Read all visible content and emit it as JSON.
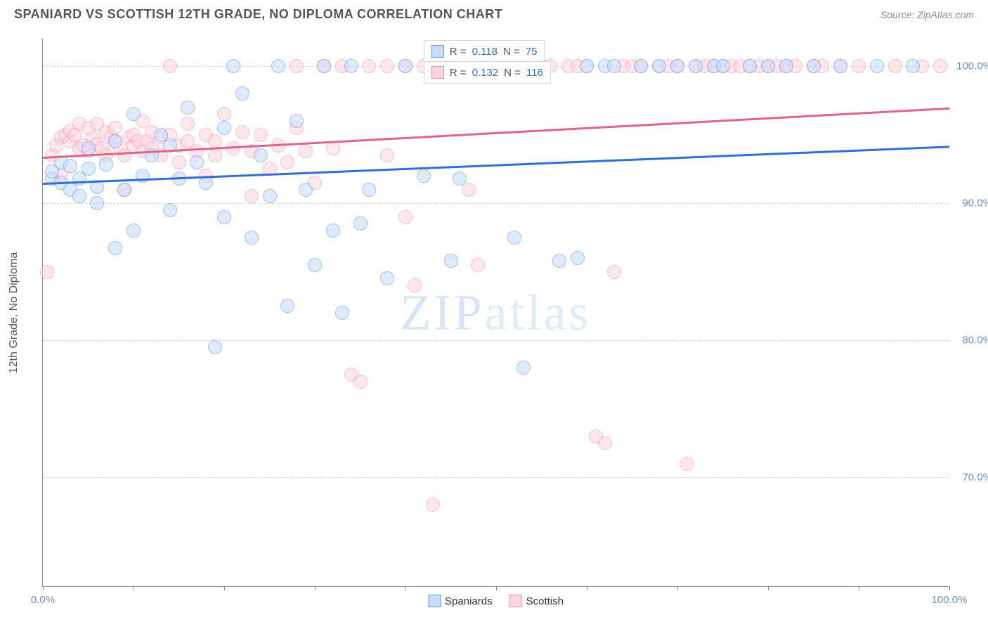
{
  "title": "SPANIARD VS SCOTTISH 12TH GRADE, NO DIPLOMA CORRELATION CHART",
  "source": "Source: ZipAtlas.com",
  "yaxis_label": "12th Grade, No Diploma",
  "watermark": "ZIPatlas",
  "chart": {
    "type": "scatter",
    "xlim": [
      0,
      100
    ],
    "ylim": [
      62,
      102
    ],
    "x_ticks": [
      0,
      10,
      20,
      30,
      40,
      50,
      60,
      70,
      80,
      90,
      100
    ],
    "x_labels_shown": {
      "0": "0.0%",
      "100": "100.0%"
    },
    "y_grid": [
      70,
      80,
      90,
      100
    ],
    "y_labels": {
      "70": "70.0%",
      "80": "80.0%",
      "90": "90.0%",
      "100": "100.0%"
    },
    "background_color": "#ffffff",
    "grid_color": "#d5d5d5",
    "axis_color": "#888888",
    "label_color": "#6a8fc9",
    "point_radius": 10,
    "point_stroke_width": 1,
    "series": [
      {
        "name": "Spaniards",
        "fill": "#c9deff",
        "stroke": "#6a98d8",
        "fill_opacity": 0.6,
        "r_value": "0.118",
        "n_value": "75",
        "trend": {
          "x0": 0,
          "y0": 91.5,
          "x1": 100,
          "y1": 94.2,
          "color": "#2e6fd6",
          "width": 2.5
        },
        "points": [
          [
            1,
            91.8
          ],
          [
            1,
            92.3
          ],
          [
            2,
            91.5
          ],
          [
            2,
            93.0
          ],
          [
            3,
            91.0
          ],
          [
            3,
            92.7
          ],
          [
            4,
            90.5
          ],
          [
            4,
            91.8
          ],
          [
            5,
            94.0
          ],
          [
            5,
            92.5
          ],
          [
            6,
            91.2
          ],
          [
            6,
            90.0
          ],
          [
            7,
            92.8
          ],
          [
            8,
            86.7
          ],
          [
            8,
            94.5
          ],
          [
            9,
            91.0
          ],
          [
            10,
            96.5
          ],
          [
            10,
            88.0
          ],
          [
            11,
            92.0
          ],
          [
            12,
            93.5
          ],
          [
            13,
            95.0
          ],
          [
            14,
            89.5
          ],
          [
            14,
            94.2
          ],
          [
            15,
            91.8
          ],
          [
            16,
            97.0
          ],
          [
            17,
            93.0
          ],
          [
            18,
            91.5
          ],
          [
            19,
            79.5
          ],
          [
            20,
            95.5
          ],
          [
            20,
            89.0
          ],
          [
            21,
            100.0
          ],
          [
            22,
            98.0
          ],
          [
            23,
            87.5
          ],
          [
            24,
            93.5
          ],
          [
            25,
            90.5
          ],
          [
            26,
            100.0
          ],
          [
            27,
            82.5
          ],
          [
            28,
            96.0
          ],
          [
            29,
            91.0
          ],
          [
            30,
            85.5
          ],
          [
            31,
            100.0
          ],
          [
            32,
            88.0
          ],
          [
            33,
            82.0
          ],
          [
            34,
            100.0
          ],
          [
            35,
            88.5
          ],
          [
            36,
            91.0
          ],
          [
            38,
            84.5
          ],
          [
            40,
            100.0
          ],
          [
            42,
            92.0
          ],
          [
            43,
            100.0
          ],
          [
            45,
            85.8
          ],
          [
            46,
            91.8
          ],
          [
            48,
            100.0
          ],
          [
            50,
            100.0
          ],
          [
            52,
            87.5
          ],
          [
            53,
            78.0
          ],
          [
            55,
            100.0
          ],
          [
            57,
            85.8
          ],
          [
            59,
            86.0
          ],
          [
            60,
            100.0
          ],
          [
            62,
            100.0
          ],
          [
            63,
            100.0
          ],
          [
            66,
            100.0
          ],
          [
            68,
            100.0
          ],
          [
            70,
            100.0
          ],
          [
            72,
            100.0
          ],
          [
            74,
            100.0
          ],
          [
            75,
            100.0
          ],
          [
            78,
            100.0
          ],
          [
            80,
            100.0
          ],
          [
            82,
            100.0
          ],
          [
            85,
            100.0
          ],
          [
            88,
            100.0
          ],
          [
            92,
            100.0
          ],
          [
            96,
            100.0
          ]
        ]
      },
      {
        "name": "Scottish",
        "fill": "#ffd4df",
        "stroke": "#e892a8",
        "fill_opacity": 0.55,
        "r_value": "0.132",
        "n_value": "116",
        "trend": {
          "x0": 0,
          "y0": 93.4,
          "x1": 100,
          "y1": 97.0,
          "color": "#e06487",
          "width": 2.5
        },
        "points": [
          [
            0.5,
            85.0
          ],
          [
            1,
            93.5
          ],
          [
            1.5,
            94.2
          ],
          [
            2,
            94.8
          ],
          [
            2,
            92.0
          ],
          [
            2.5,
            95.0
          ],
          [
            3,
            94.5
          ],
          [
            3,
            95.3
          ],
          [
            3.5,
            95.0
          ],
          [
            4,
            94.0
          ],
          [
            4,
            95.8
          ],
          [
            4.5,
            94.2
          ],
          [
            5,
            95.5
          ],
          [
            5,
            93.8
          ],
          [
            5.5,
            94.7
          ],
          [
            6,
            94.3
          ],
          [
            6,
            95.8
          ],
          [
            6.5,
            94.0
          ],
          [
            7,
            95.2
          ],
          [
            7,
            93.5
          ],
          [
            7.5,
            94.8
          ],
          [
            8,
            94.5
          ],
          [
            8,
            95.5
          ],
          [
            8.5,
            94.0
          ],
          [
            9,
            91.0
          ],
          [
            9,
            93.5
          ],
          [
            9.5,
            94.8
          ],
          [
            10,
            94.2
          ],
          [
            10,
            95.0
          ],
          [
            10.5,
            94.5
          ],
          [
            11,
            96.0
          ],
          [
            11,
            93.8
          ],
          [
            11.5,
            94.5
          ],
          [
            12,
            95.2
          ],
          [
            12,
            94.0
          ],
          [
            13,
            94.8
          ],
          [
            13,
            93.5
          ],
          [
            14,
            100.0
          ],
          [
            14,
            95.0
          ],
          [
            15,
            94.2
          ],
          [
            15,
            93.0
          ],
          [
            16,
            94.5
          ],
          [
            16,
            95.8
          ],
          [
            17,
            93.8
          ],
          [
            18,
            92.0
          ],
          [
            18,
            95.0
          ],
          [
            19,
            94.5
          ],
          [
            19,
            93.5
          ],
          [
            20,
            96.5
          ],
          [
            21,
            94.0
          ],
          [
            22,
            95.2
          ],
          [
            23,
            90.5
          ],
          [
            23,
            93.8
          ],
          [
            24,
            95.0
          ],
          [
            25,
            92.5
          ],
          [
            26,
            94.2
          ],
          [
            27,
            93.0
          ],
          [
            28,
            100.0
          ],
          [
            28,
            95.5
          ],
          [
            29,
            93.8
          ],
          [
            30,
            91.5
          ],
          [
            31,
            100.0
          ],
          [
            32,
            94.0
          ],
          [
            33,
            100.0
          ],
          [
            34,
            77.5
          ],
          [
            35,
            77.0
          ],
          [
            36,
            100.0
          ],
          [
            38,
            93.5
          ],
          [
            38,
            100.0
          ],
          [
            40,
            89.0
          ],
          [
            40,
            100.0
          ],
          [
            41,
            84.0
          ],
          [
            42,
            100.0
          ],
          [
            43,
            68.0
          ],
          [
            44,
            100.0
          ],
          [
            45,
            100.0
          ],
          [
            47,
            91.0
          ],
          [
            48,
            85.5
          ],
          [
            49,
            100.0
          ],
          [
            50,
            100.0
          ],
          [
            52,
            100.0
          ],
          [
            53,
            100.0
          ],
          [
            55,
            100.0
          ],
          [
            56,
            100.0
          ],
          [
            58,
            100.0
          ],
          [
            59,
            100.0
          ],
          [
            60,
            100.0
          ],
          [
            61,
            73.0
          ],
          [
            62,
            72.5
          ],
          [
            63,
            85.0
          ],
          [
            64,
            100.0
          ],
          [
            65,
            100.0
          ],
          [
            66,
            100.0
          ],
          [
            68,
            100.0
          ],
          [
            69,
            100.0
          ],
          [
            70,
            100.0
          ],
          [
            71,
            71.0
          ],
          [
            72,
            100.0
          ],
          [
            73,
            100.0
          ],
          [
            74,
            100.0
          ],
          [
            75,
            100.0
          ],
          [
            76,
            100.0
          ],
          [
            77,
            100.0
          ],
          [
            78,
            100.0
          ],
          [
            79,
            100.0
          ],
          [
            80,
            100.0
          ],
          [
            81,
            100.0
          ],
          [
            82,
            100.0
          ],
          [
            83,
            100.0
          ],
          [
            85,
            100.0
          ],
          [
            86,
            100.0
          ],
          [
            88,
            100.0
          ],
          [
            90,
            100.0
          ],
          [
            94,
            100.0
          ],
          [
            97,
            100.0
          ],
          [
            99,
            100.0
          ]
        ]
      }
    ]
  }
}
